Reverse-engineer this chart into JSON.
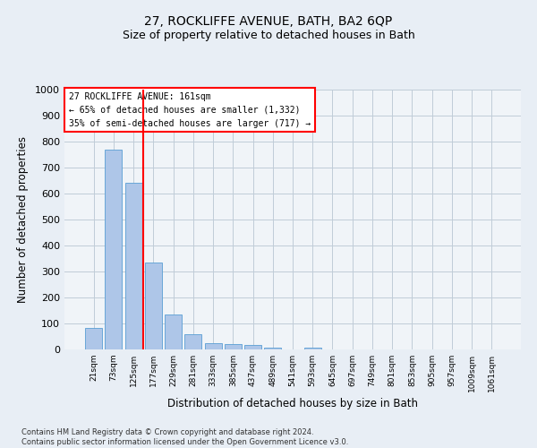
{
  "title": "27, ROCKLIFFE AVENUE, BATH, BA2 6QP",
  "subtitle": "Size of property relative to detached houses in Bath",
  "xlabel": "Distribution of detached houses by size in Bath",
  "ylabel": "Number of detached properties",
  "footer": "Contains HM Land Registry data © Crown copyright and database right 2024.\nContains public sector information licensed under the Open Government Licence v3.0.",
  "bar_labels": [
    "21sqm",
    "73sqm",
    "125sqm",
    "177sqm",
    "229sqm",
    "281sqm",
    "333sqm",
    "385sqm",
    "437sqm",
    "489sqm",
    "541sqm",
    "593sqm",
    "645sqm",
    "697sqm",
    "749sqm",
    "801sqm",
    "853sqm",
    "905sqm",
    "957sqm",
    "1009sqm",
    "1061sqm"
  ],
  "bar_values": [
    83,
    770,
    640,
    335,
    135,
    60,
    25,
    22,
    18,
    8,
    0,
    7,
    0,
    0,
    0,
    0,
    0,
    0,
    0,
    0,
    0
  ],
  "bar_color": "#aec6e8",
  "bar_edge_color": "#5a9fd4",
  "vline_x": 2.5,
  "vline_color": "red",
  "annotation_text": "27 ROCKLIFFE AVENUE: 161sqm\n← 65% of detached houses are smaller (1,332)\n35% of semi-detached houses are larger (717) →",
  "annotation_box_color": "red",
  "ylim": [
    0,
    1000
  ],
  "yticks": [
    0,
    100,
    200,
    300,
    400,
    500,
    600,
    700,
    800,
    900,
    1000
  ],
  "bg_color": "#e8eef5",
  "plot_bg_color": "#f0f4f8",
  "grid_color": "#c0ccd8",
  "title_fontsize": 10,
  "subtitle_fontsize": 9
}
